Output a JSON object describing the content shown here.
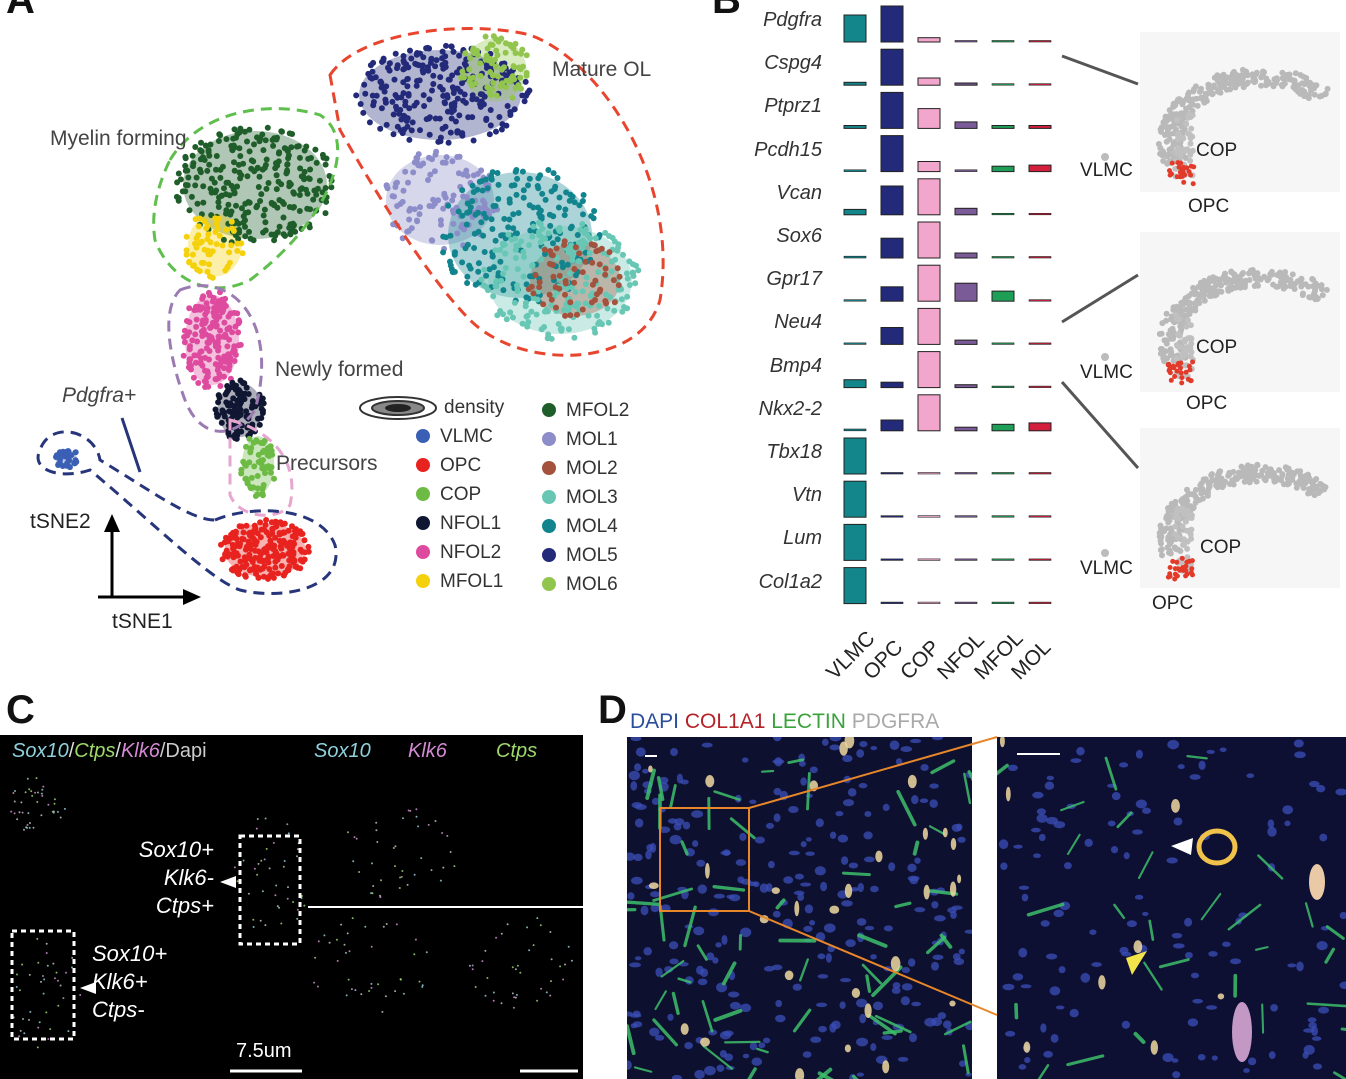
{
  "panel_letters": {
    "a": "A",
    "b": "B",
    "c": "C",
    "d": "D"
  },
  "panel_a": {
    "regions": {
      "mature": "Mature OL",
      "myelin": "Myelin forming",
      "newly": "Newly formed",
      "precursors": "Precursors",
      "pdgfra": "Pdgfra+"
    },
    "axes": {
      "y": "tSNE2",
      "x": "tSNE1"
    },
    "legend_density": "density",
    "legend_left": [
      {
        "label": "VLMC",
        "color": "#3a5fb5"
      },
      {
        "label": "OPC",
        "color": "#e8231f"
      },
      {
        "label": "COP",
        "color": "#6dbb45"
      },
      {
        "label": "NFOL1",
        "color": "#101733"
      },
      {
        "label": "NFOL2",
        "color": "#de4a9e"
      },
      {
        "label": "MFOL1",
        "color": "#f5d10c"
      }
    ],
    "legend_right": [
      {
        "label": "MFOL2",
        "color": "#1f5e2a"
      },
      {
        "label": "MOL1",
        "color": "#8d8dc9"
      },
      {
        "label": "MOL2",
        "color": "#a3523d"
      },
      {
        "label": "MOL3",
        "color": "#67c7b4"
      },
      {
        "label": "MOL4",
        "color": "#11848e"
      },
      {
        "label": "MOL5",
        "color": "#232a79"
      },
      {
        "label": "MOL6",
        "color": "#92c54e"
      }
    ]
  },
  "panel_b": {
    "genes": [
      "Pdgfra",
      "Cspg4",
      "Ptprz1",
      "Pcdh15",
      "Vcan",
      "Sox6",
      "Gpr17",
      "Neu4",
      "Bmp4",
      "Nkx2-2",
      "Tbx18",
      "Vtn",
      "Lum",
      "Col1a2"
    ],
    "cell_types": [
      "VLMC",
      "OPC",
      "COP",
      "NFOL",
      "MFOL",
      "MOL"
    ],
    "cell_type_colors": [
      "#13868c",
      "#232a79",
      "#f2a6cb",
      "#7a5a97",
      "#1f9e57",
      "#d21f3c"
    ],
    "tsne_labels": [
      {
        "vlmc": "VLMC",
        "cop": "COP",
        "opc": "OPC"
      },
      {
        "vlmc": "VLMC",
        "cop": "COP",
        "opc": "OPC"
      },
      {
        "vlmc": "VLMC",
        "cop": "COP",
        "opc": "OPC"
      }
    ]
  },
  "chart_data": {
    "type": "bar",
    "categories": [
      "VLMC",
      "OPC",
      "COP",
      "NFOL",
      "MFOL",
      "MOL"
    ],
    "series": [
      {
        "name": "Pdgfra",
        "values": [
          0.75,
          1.0,
          0.12,
          0.02,
          0.02,
          0.02
        ]
      },
      {
        "name": "Cspg4",
        "values": [
          0.08,
          1.0,
          0.2,
          0.06,
          0.04,
          0.04
        ]
      },
      {
        "name": "Ptprz1",
        "values": [
          0.08,
          1.0,
          0.55,
          0.18,
          0.08,
          0.08
        ]
      },
      {
        "name": "Pcdh15",
        "values": [
          0.05,
          1.0,
          0.28,
          0.05,
          0.15,
          0.18
        ]
      },
      {
        "name": "Vcan",
        "values": [
          0.15,
          0.8,
          1.0,
          0.18,
          0.02,
          0.02
        ]
      },
      {
        "name": "Sox6",
        "values": [
          0.05,
          0.55,
          1.0,
          0.14,
          0.04,
          0.03
        ]
      },
      {
        "name": "Gpr17",
        "values": [
          0.02,
          0.4,
          1.0,
          0.5,
          0.28,
          0.02
        ]
      },
      {
        "name": "Neu4",
        "values": [
          0.02,
          0.47,
          1.0,
          0.12,
          0.02,
          0.02
        ]
      },
      {
        "name": "Bmp4",
        "values": [
          0.22,
          0.15,
          1.0,
          0.08,
          0.03,
          0.03
        ]
      },
      {
        "name": "Nkx2-2",
        "values": [
          0.05,
          0.3,
          1.0,
          0.1,
          0.18,
          0.22
        ]
      },
      {
        "name": "Tbx18",
        "values": [
          1.0,
          0.01,
          0.01,
          0.01,
          0.01,
          0.01
        ]
      },
      {
        "name": "Vtn",
        "values": [
          1.0,
          0.04,
          0.02,
          0.01,
          0.01,
          0.01
        ]
      },
      {
        "name": "Lum",
        "values": [
          1.0,
          0.01,
          0.01,
          0.01,
          0.01,
          0.01
        ]
      },
      {
        "name": "Col1a2",
        "values": [
          1.0,
          0.01,
          0.01,
          0.01,
          0.01,
          0.01
        ]
      }
    ],
    "title": "",
    "xlabel": "",
    "ylabel": ""
  },
  "panel_c": {
    "header_left": [
      {
        "text": "Sox10",
        "color": "#8fd0dc",
        "italic": true
      },
      {
        "text": "/",
        "color": "#dddddd",
        "italic": false
      },
      {
        "text": "Ctps",
        "color": "#9fd86b",
        "italic": true
      },
      {
        "text": "/",
        "color": "#dddddd",
        "italic": false
      },
      {
        "text": "Klk6",
        "color": "#d38ad3",
        "italic": true
      },
      {
        "text": "/Dapi",
        "color": "#cccccc",
        "italic": false
      }
    ],
    "header_sox10": "Sox10",
    "header_klk6": "Klk6",
    "header_ctps": "Ctps",
    "anno_top": [
      "Sox10+",
      "Klk6-",
      "Ctps+"
    ],
    "anno_bottom": [
      "Sox10+",
      "Klk6+",
      "Ctps-"
    ],
    "scale": "7.5um"
  },
  "panel_d": {
    "header": [
      {
        "text": "DAPI",
        "color": "#2a4e9a"
      },
      {
        "text": "COL1A1",
        "color": "#b5232a"
      },
      {
        "text": "LECTIN",
        "color": "#3aa23c"
      },
      {
        "text": "PDGFRA",
        "color": "#a9a9a9"
      }
    ]
  }
}
